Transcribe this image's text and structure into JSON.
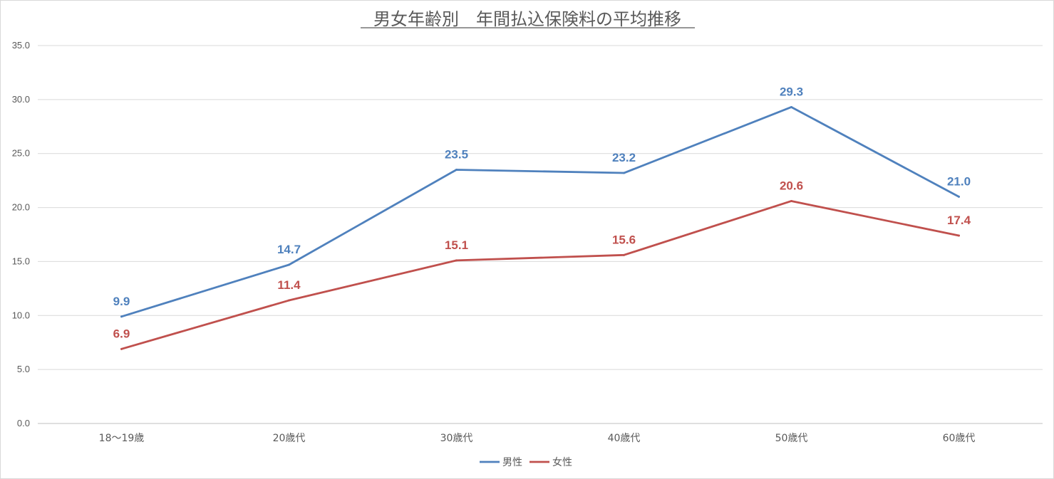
{
  "chart_data": {
    "type": "line",
    "title": "男女年齢別　年間払込保険料の平均推移",
    "xlabel": "",
    "ylabel": "",
    "categories": [
      "18～19歳",
      "20歳代",
      "30歳代",
      "40歳代",
      "50歳代",
      "60歳代"
    ],
    "ylim": [
      0,
      35
    ],
    "yticks": [
      "0.0",
      "5.0",
      "10.0",
      "15.0",
      "20.0",
      "25.0",
      "30.0",
      "35.0"
    ],
    "grid": true,
    "legend_position": "bottom",
    "series": [
      {
        "name": "男性",
        "color": "#4f81bd",
        "values": [
          9.9,
          14.7,
          23.5,
          23.2,
          29.3,
          21.0
        ],
        "labels": [
          "9.9",
          "14.7",
          "23.5",
          "23.2",
          "29.3",
          "21.0"
        ]
      },
      {
        "name": "女性",
        "color": "#c0504d",
        "values": [
          6.9,
          11.4,
          15.1,
          15.6,
          20.6,
          17.4
        ],
        "labels": [
          "6.9",
          "11.4",
          "15.1",
          "15.6",
          "20.6",
          "17.4"
        ]
      }
    ]
  }
}
